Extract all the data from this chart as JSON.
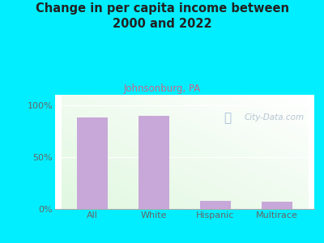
{
  "title": "Change in per capita income between\n2000 and 2022",
  "subtitle": "Johnsonburg, PA",
  "categories": [
    "All",
    "White",
    "Hispanic",
    "Multirace"
  ],
  "values": [
    88,
    90,
    8,
    7
  ],
  "bar_color": "#c8a8d8",
  "bg_color": "#00eeff",
  "title_color": "#222222",
  "subtitle_color": "#cc6688",
  "tick_color": "#666666",
  "yticks": [
    0,
    50,
    100
  ],
  "ytick_labels": [
    "0%",
    "50%",
    "100%"
  ],
  "ylim": [
    0,
    110
  ],
  "watermark": "City-Data.com",
  "title_fontsize": 10.5,
  "subtitle_fontsize": 8.5,
  "tick_fontsize": 8
}
